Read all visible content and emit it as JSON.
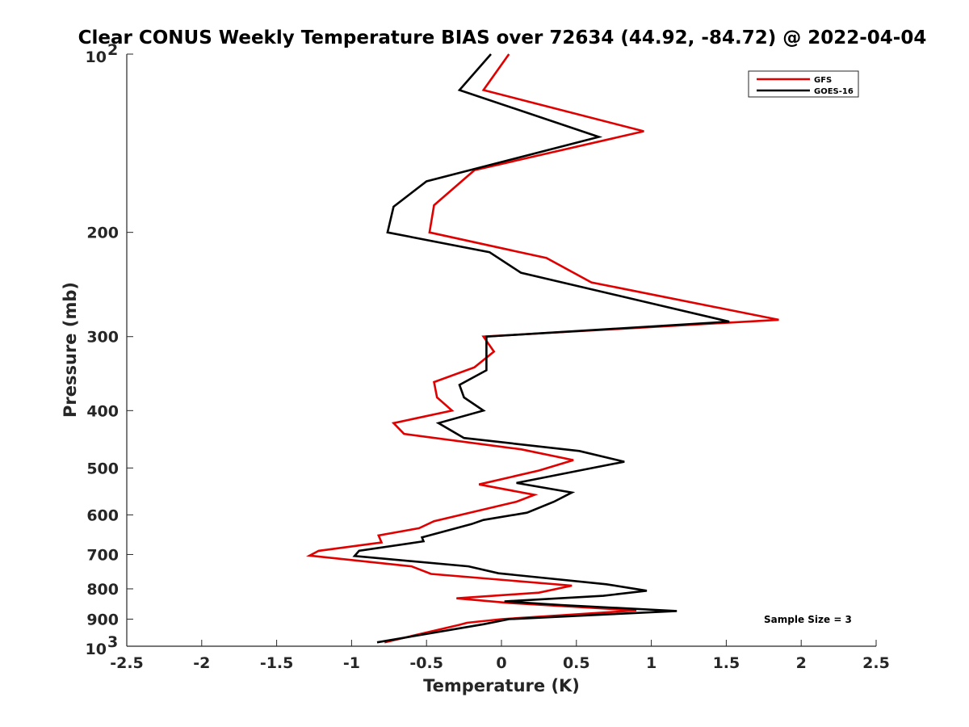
{
  "chart_data": {
    "type": "line",
    "title": "Clear CONUS Weekly Temperature BIAS over 72634 (44.92, -84.72) @ 2022-04-04",
    "xlabel": "Temperature (K)",
    "ylabel": "Pressure (mb)",
    "xlim": [
      -2.5,
      2.5
    ],
    "ylim": [
      100,
      1000
    ],
    "y_scale": "log",
    "y_reversed": true,
    "grid": false,
    "legend_position": "top-right",
    "x_ticks": [
      -2.5,
      -2,
      -1.5,
      -1,
      -0.5,
      0,
      0.5,
      1,
      1.5,
      2,
      2.5
    ],
    "x_tick_labels": [
      "-2.5",
      "-2",
      "-1.5",
      "-1",
      "-0.5",
      "0",
      "0.5",
      "1",
      "1.5",
      "2",
      "2.5"
    ],
    "y_ticks": [
      {
        "value": 100,
        "base": "10",
        "exp": "2"
      },
      {
        "value": 200,
        "label": "200"
      },
      {
        "value": 300,
        "label": "300"
      },
      {
        "value": 400,
        "label": "400"
      },
      {
        "value": 500,
        "label": "500"
      },
      {
        "value": 600,
        "label": "600"
      },
      {
        "value": 700,
        "label": "700"
      },
      {
        "value": 800,
        "label": "800"
      },
      {
        "value": 900,
        "label": "900"
      },
      {
        "value": 1000,
        "base": "10",
        "exp": "3"
      }
    ],
    "annotation": "Sample Size = 3",
    "series": [
      {
        "name": "GFS",
        "color": "#e00000",
        "points": [
          [
            0.05,
            100
          ],
          [
            -0.12,
            115
          ],
          [
            0.95,
            135
          ],
          [
            -0.18,
            157
          ],
          [
            -0.45,
            180
          ],
          [
            -0.48,
            200
          ],
          [
            0.3,
            221
          ],
          [
            0.6,
            243
          ],
          [
            1.85,
            281
          ],
          [
            -0.12,
            300
          ],
          [
            -0.05,
            318
          ],
          [
            -0.18,
            338
          ],
          [
            -0.45,
            358
          ],
          [
            -0.43,
            380
          ],
          [
            -0.33,
            400
          ],
          [
            -0.72,
            420
          ],
          [
            -0.65,
            438
          ],
          [
            0.13,
            465
          ],
          [
            0.48,
            485
          ],
          [
            0.25,
            505
          ],
          [
            -0.15,
            533
          ],
          [
            0.22,
            555
          ],
          [
            0.1,
            570
          ],
          [
            -0.45,
            615
          ],
          [
            -0.55,
            632
          ],
          [
            -0.82,
            650
          ],
          [
            -0.8,
            668
          ],
          [
            -1.22,
            690
          ],
          [
            -1.28,
            703
          ],
          [
            -0.6,
            733
          ],
          [
            -0.47,
            755
          ],
          [
            0.47,
            790
          ],
          [
            0.25,
            812
          ],
          [
            -0.3,
            830
          ],
          [
            0.05,
            845
          ],
          [
            0.9,
            870
          ],
          [
            0.0,
            900
          ],
          [
            -0.23,
            913
          ],
          [
            -0.28,
            920
          ],
          [
            -0.78,
            985
          ]
        ]
      },
      {
        "name": "GOES-16",
        "color": "#000000",
        "points": [
          [
            -0.07,
            100
          ],
          [
            -0.28,
            115
          ],
          [
            0.65,
            138
          ],
          [
            -0.5,
            164
          ],
          [
            -0.72,
            181
          ],
          [
            -0.76,
            200
          ],
          [
            -0.08,
            216
          ],
          [
            0.13,
            234
          ],
          [
            1.52,
            283
          ],
          [
            -0.1,
            300
          ],
          [
            -0.1,
            320
          ],
          [
            -0.1,
            342
          ],
          [
            -0.28,
            362
          ],
          [
            -0.25,
            380
          ],
          [
            -0.12,
            400
          ],
          [
            -0.42,
            420
          ],
          [
            -0.25,
            445
          ],
          [
            0.52,
            468
          ],
          [
            0.82,
            488
          ],
          [
            0.52,
            505
          ],
          [
            0.1,
            530
          ],
          [
            0.47,
            550
          ],
          [
            0.35,
            570
          ],
          [
            0.17,
            595
          ],
          [
            -0.12,
            612
          ],
          [
            -0.2,
            622
          ],
          [
            -0.53,
            655
          ],
          [
            -0.52,
            665
          ],
          [
            -0.95,
            690
          ],
          [
            -0.98,
            704
          ],
          [
            -0.22,
            733
          ],
          [
            -0.02,
            753
          ],
          [
            0.7,
            786
          ],
          [
            0.97,
            806
          ],
          [
            0.68,
            822
          ],
          [
            0.02,
            840
          ],
          [
            0.4,
            852
          ],
          [
            1.17,
            872
          ],
          [
            0.05,
            900
          ],
          [
            -0.12,
            918
          ],
          [
            -0.83,
            985
          ]
        ]
      }
    ]
  }
}
